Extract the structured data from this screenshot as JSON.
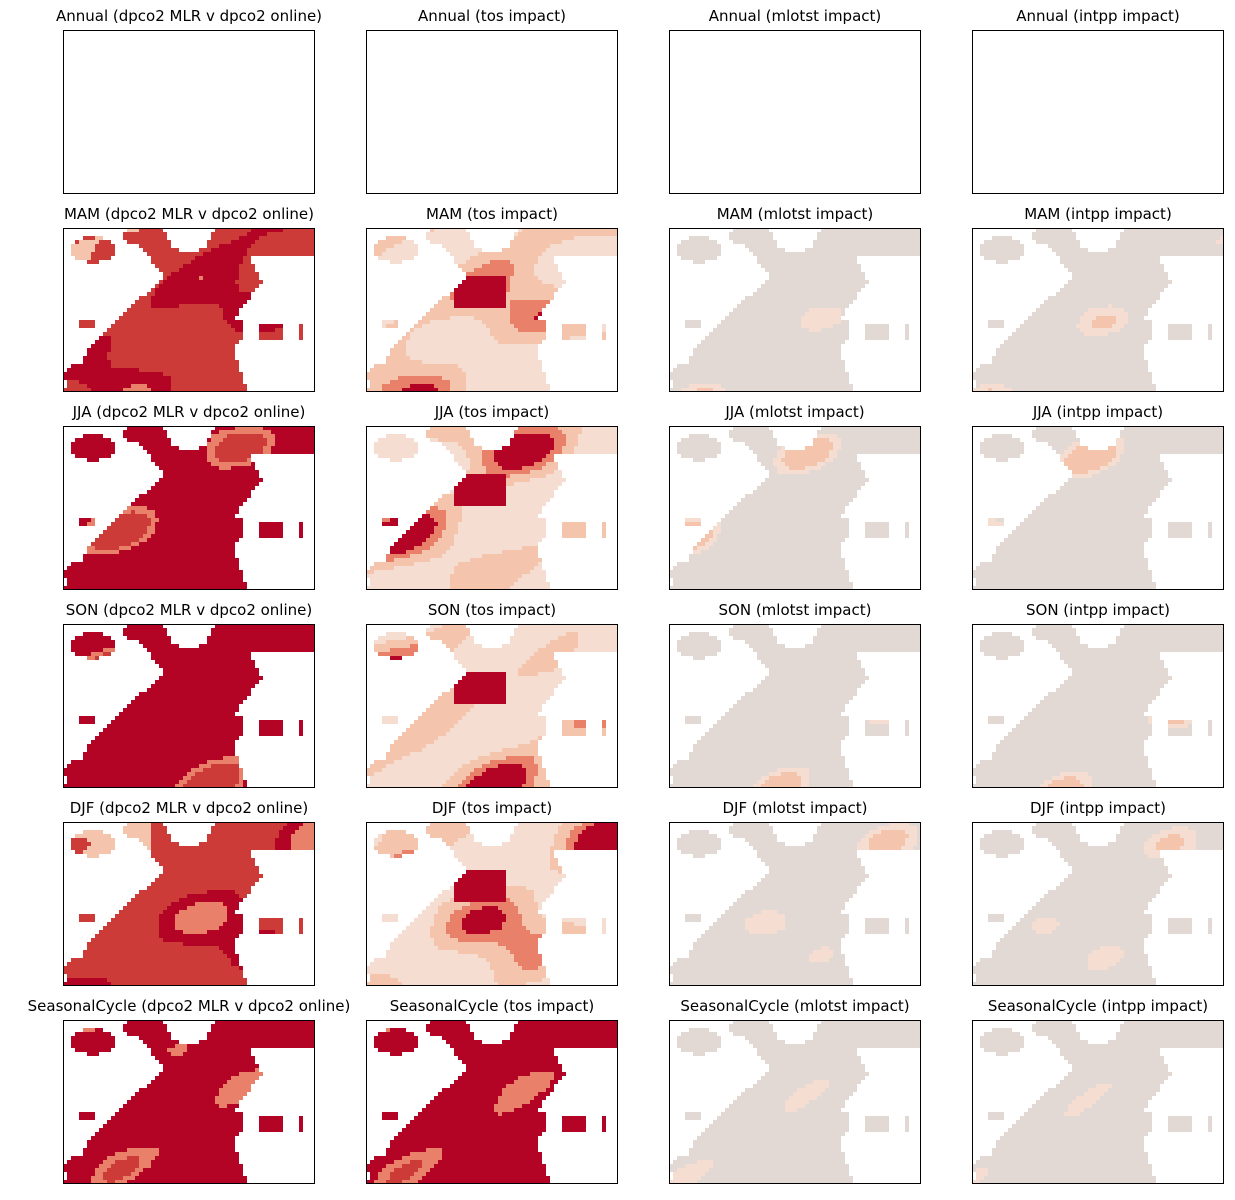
{
  "figure": {
    "rows": [
      "Annual",
      "MAM",
      "JJA",
      "SON",
      "DJF",
      "SeasonalCycle"
    ],
    "columns": [
      "dpco2 MLR v dpco2 online",
      "tos impact",
      "mlotst impact",
      "intpp impact"
    ],
    "colors": {
      "land": "#ffffff",
      "neutral": "#e2d9d4",
      "light": "#f4c4ad",
      "pale": "#f6ddd2",
      "mid": "#e8806a",
      "strong": "#cc3b38",
      "deep": "#b40426"
    }
  },
  "chart_data": [
    {
      "type": "heatmap",
      "title": "Annual (dpco2 MLR v dpco2 online)",
      "values": [],
      "colormap": "Reds"
    },
    {
      "type": "heatmap",
      "title": "Annual (tos impact)",
      "values": [],
      "colormap": "Reds"
    },
    {
      "type": "heatmap",
      "title": "Annual (mlotst impact)",
      "values": [],
      "colormap": "Reds"
    },
    {
      "type": "heatmap",
      "title": "Annual (intpp impact)",
      "values": [],
      "colormap": "Reds"
    },
    {
      "type": "heatmap",
      "title": "MAM (dpco2 MLR v dpco2 online)",
      "colormap": "Reds",
      "dominant_level": "strong"
    },
    {
      "type": "heatmap",
      "title": "MAM (tos impact)",
      "colormap": "Reds",
      "dominant_level": "pale"
    },
    {
      "type": "heatmap",
      "title": "MAM (mlotst impact)",
      "colormap": "Reds",
      "dominant_level": "neutral"
    },
    {
      "type": "heatmap",
      "title": "MAM (intpp impact)",
      "colormap": "Reds",
      "dominant_level": "neutral"
    },
    {
      "type": "heatmap",
      "title": "JJA (dpco2 MLR v dpco2 online)",
      "colormap": "Reds",
      "dominant_level": "deep"
    },
    {
      "type": "heatmap",
      "title": "JJA (tos impact)",
      "colormap": "Reds",
      "dominant_level": "pale"
    },
    {
      "type": "heatmap",
      "title": "JJA (mlotst impact)",
      "colormap": "Reds",
      "dominant_level": "neutral"
    },
    {
      "type": "heatmap",
      "title": "JJA (intpp impact)",
      "colormap": "Reds",
      "dominant_level": "neutral"
    },
    {
      "type": "heatmap",
      "title": "SON (dpco2 MLR v dpco2 online)",
      "colormap": "Reds",
      "dominant_level": "deep"
    },
    {
      "type": "heatmap",
      "title": "SON (tos impact)",
      "colormap": "Reds",
      "dominant_level": "pale"
    },
    {
      "type": "heatmap",
      "title": "SON (mlotst impact)",
      "colormap": "Reds",
      "dominant_level": "neutral"
    },
    {
      "type": "heatmap",
      "title": "SON (intpp impact)",
      "colormap": "Reds",
      "dominant_level": "neutral"
    },
    {
      "type": "heatmap",
      "title": "DJF (dpco2 MLR v dpco2 online)",
      "colormap": "Reds",
      "dominant_level": "strong"
    },
    {
      "type": "heatmap",
      "title": "DJF (tos impact)",
      "colormap": "Reds",
      "dominant_level": "pale"
    },
    {
      "type": "heatmap",
      "title": "DJF (mlotst impact)",
      "colormap": "Reds",
      "dominant_level": "neutral"
    },
    {
      "type": "heatmap",
      "title": "DJF (intpp impact)",
      "colormap": "Reds",
      "dominant_level": "neutral"
    },
    {
      "type": "heatmap",
      "title": "SeasonalCycle (dpco2 MLR v dpco2 online)",
      "colormap": "Reds",
      "dominant_level": "deep"
    },
    {
      "type": "heatmap",
      "title": "SeasonalCycle (tos impact)",
      "colormap": "Reds",
      "dominant_level": "deep"
    },
    {
      "type": "heatmap",
      "title": "SeasonalCycle (mlotst impact)",
      "colormap": "Reds",
      "dominant_level": "neutral"
    },
    {
      "type": "heatmap",
      "title": "SeasonalCycle (intpp impact)",
      "colormap": "Reds",
      "dominant_level": "neutral"
    }
  ]
}
